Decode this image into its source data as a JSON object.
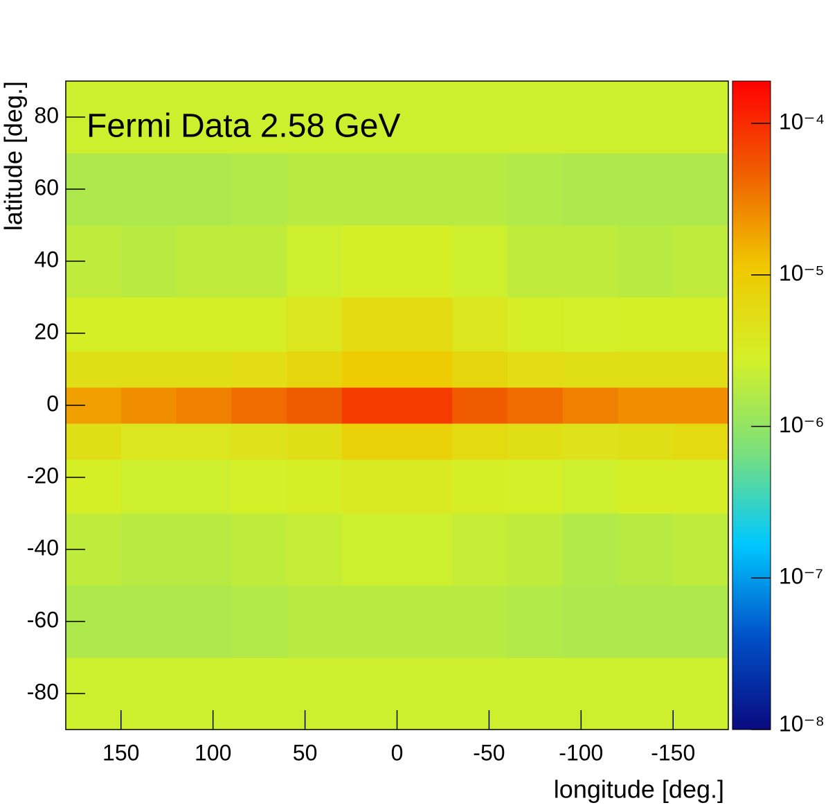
{
  "chart_data": {
    "type": "heatmap",
    "annotation": "Fermi Data 2.58 GeV",
    "x_label": "longitude [deg.]",
    "y_label": "latitude [deg.]",
    "xlim": [
      180,
      -180
    ],
    "ylim": [
      -90,
      90
    ],
    "xticks": [
      150,
      100,
      50,
      0,
      -50,
      -100,
      -150
    ],
    "yticks": [
      -80,
      -60,
      -40,
      -20,
      0,
      20,
      40,
      60,
      80
    ],
    "x_bins": [
      180,
      150,
      120,
      90,
      60,
      30,
      0,
      -30,
      -60,
      -90,
      -120,
      -150,
      -180
    ],
    "y_bins": [
      -90,
      -70,
      -50,
      -30,
      -15,
      -5,
      5,
      15,
      30,
      50,
      70,
      90
    ],
    "z": [
      [
        2.5e-06,
        2.5e-06,
        2.5e-06,
        2.5e-06,
        2.5e-06,
        2.5e-06,
        2.5e-06,
        2.5e-06,
        2.5e-06,
        2.5e-06,
        2.5e-06,
        2.5e-06
      ],
      [
        1.5e-06,
        1.5e-06,
        1.5e-06,
        1.6e-06,
        1.8e-06,
        1.8e-06,
        1.8e-06,
        1.8e-06,
        1.6e-06,
        1.5e-06,
        1.5e-06,
        1.5e-06
      ],
      [
        2e-06,
        1.8e-06,
        1.8e-06,
        2e-06,
        2.2e-06,
        2.5e-06,
        2.5e-06,
        2.2e-06,
        2e-06,
        1.6e-06,
        1.8e-06,
        2e-06
      ],
      [
        3e-06,
        2.5e-06,
        2.5e-06,
        2.8e-06,
        3e-06,
        3.5e-06,
        3.5e-06,
        3e-06,
        2.8e-06,
        2.5e-06,
        3e-06,
        3e-06
      ],
      [
        5e-06,
        4e-06,
        4e-06,
        4.5e-06,
        5e-06,
        8e-06,
        8e-06,
        6e-06,
        5e-06,
        4.5e-06,
        5e-06,
        6e-06
      ],
      [
        2e-05,
        2.5e-05,
        3e-05,
        4e-05,
        5e-05,
        8e-05,
        8e-05,
        5e-05,
        4e-05,
        3e-05,
        2.5e-05,
        2.5e-05
      ],
      [
        5e-06,
        5e-06,
        5e-06,
        5.5e-06,
        7e-06,
        1e-05,
        1e-05,
        7e-06,
        5.5e-06,
        5e-06,
        5e-06,
        5e-06
      ],
      [
        3e-06,
        3e-06,
        3e-06,
        3e-06,
        4e-06,
        6e-06,
        6e-06,
        4e-06,
        3e-06,
        2.8e-06,
        3e-06,
        3e-06
      ],
      [
        2e-06,
        1.8e-06,
        2e-06,
        2e-06,
        2.5e-06,
        3e-06,
        3e-06,
        2.5e-06,
        2e-06,
        2e-06,
        1.8e-06,
        2e-06
      ],
      [
        1.5e-06,
        1.5e-06,
        1.5e-06,
        1.6e-06,
        1.8e-06,
        1.8e-06,
        1.8e-06,
        1.8e-06,
        1.6e-06,
        1.5e-06,
        1.5e-06,
        1.5e-06
      ],
      [
        2.5e-06,
        2.5e-06,
        2.5e-06,
        2.5e-06,
        2.5e-06,
        2.5e-06,
        2.5e-06,
        2.5e-06,
        2.5e-06,
        2.5e-06,
        2.5e-06,
        2.5e-06
      ]
    ],
    "zlim": [
      1e-08,
      0.00019
    ],
    "zlog": true,
    "zticks": [
      {
        "value": 1e-08,
        "label": "10⁻⁸"
      },
      {
        "value": 1e-07,
        "label": "10⁻⁷"
      },
      {
        "value": 1e-06,
        "label": "10⁻⁶"
      },
      {
        "value": 1e-05,
        "label": "10⁻⁵"
      },
      {
        "value": 0.0001,
        "label": "10⁻⁴"
      }
    ],
    "colormap": [
      "#0a0a80",
      "#0050c8",
      "#00c8ff",
      "#7be07b",
      "#d4f028",
      "#f0c800",
      "#f06000",
      "#ff0000"
    ]
  }
}
